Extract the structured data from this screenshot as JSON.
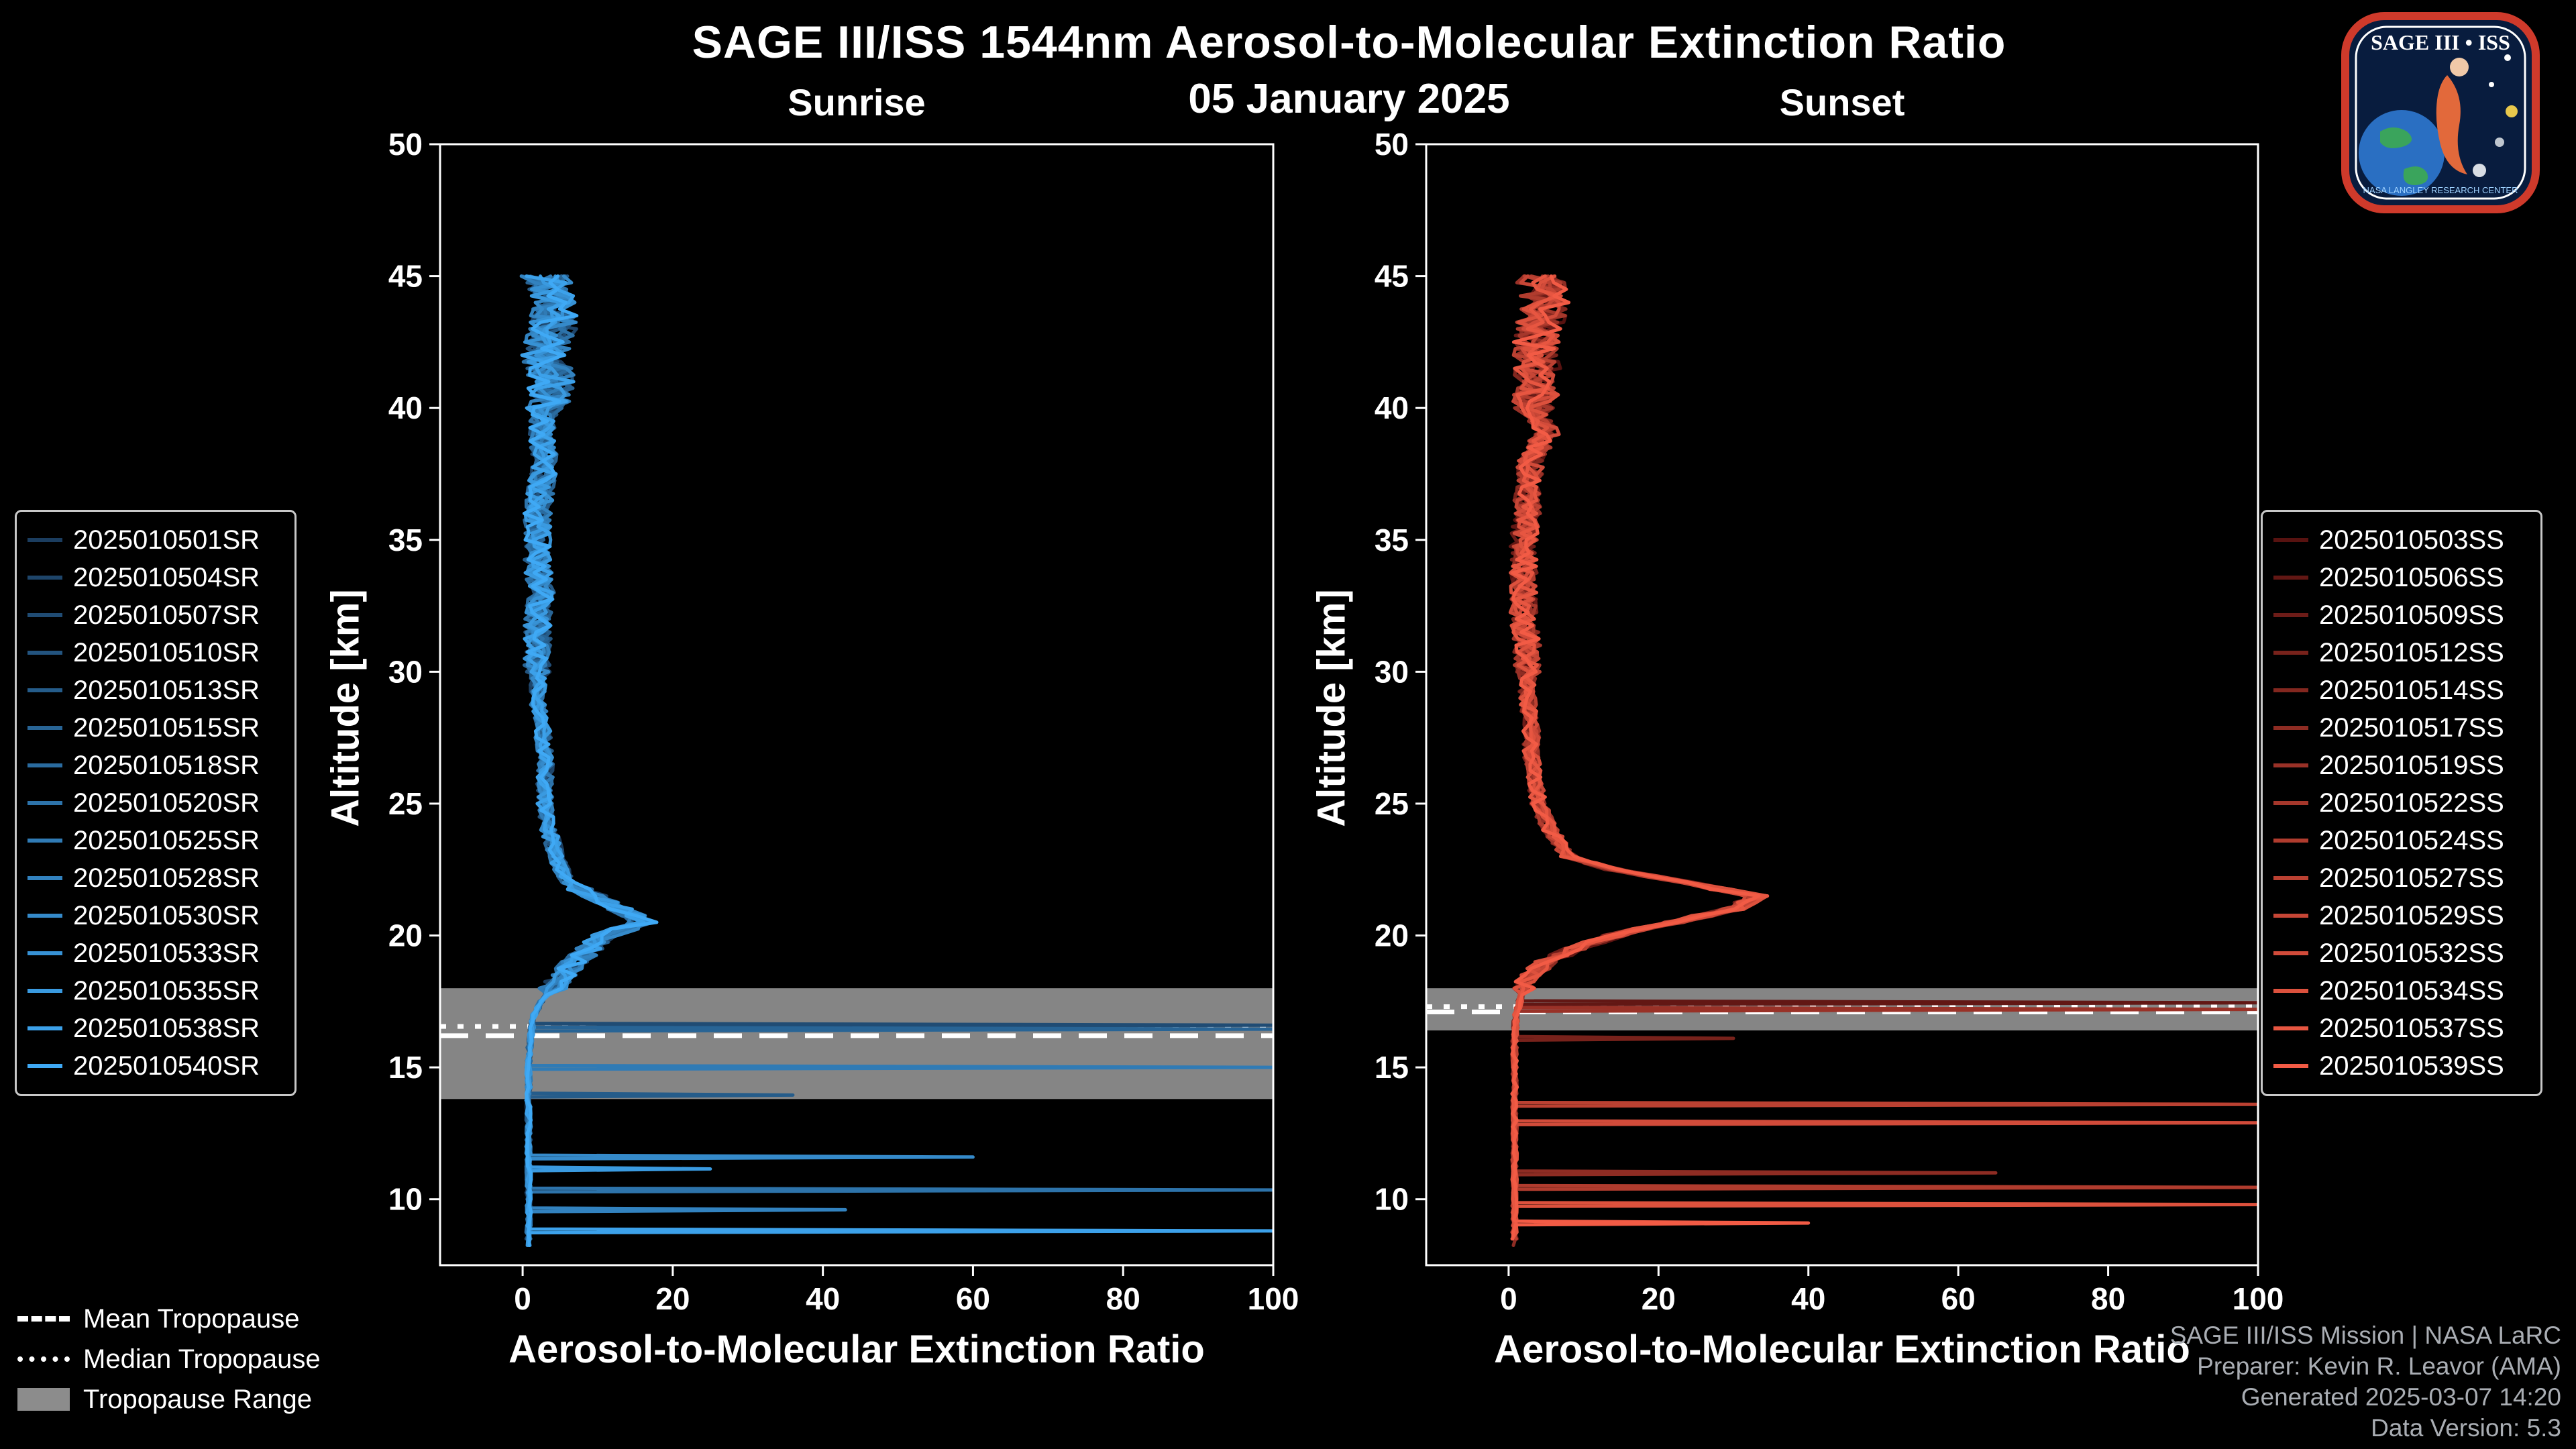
{
  "header": {
    "title": "SAGE III/ISS 1544nm Aerosol-to-Molecular Extinction Ratio",
    "date": "05 January 2025"
  },
  "axes": {
    "ylabel": "Altitude [km]",
    "xlabel": "Aerosol-to-Molecular Extinction Ratio"
  },
  "tropopause_legend": {
    "mean": "Mean Tropopause",
    "median": "Median Tropopause",
    "range": "Tropopause Range"
  },
  "footer": {
    "line1": "SAGE III/ISS Mission | NASA LaRC",
    "line2": "Preparer: Kevin R. Leavor (AMA)",
    "line3": "Generated 2025-03-07 14:20",
    "line4": "Data Version: 5.3"
  },
  "logo": {
    "line1": "SAGE III • ISS",
    "line2": "NASA LANGLEY RESEARCH CENTER"
  },
  "chart_data": [
    {
      "type": "line",
      "title": "Sunrise",
      "xlabel": "Aerosol-to-Molecular Extinction Ratio",
      "ylabel": "Altitude [km]",
      "xlim": [
        -11,
        100
      ],
      "ylim": [
        7.5,
        50
      ],
      "xticks": [
        0,
        20,
        40,
        60,
        80,
        100
      ],
      "yticks": [
        10,
        15,
        20,
        25,
        30,
        35,
        40,
        45,
        50
      ],
      "grid": false,
      "legend_position": "outside-left",
      "series_ids": [
        "2025010501SR",
        "2025010504SR",
        "2025010507SR",
        "2025010510SR",
        "2025010513SR",
        "2025010515SR",
        "2025010518SR",
        "2025010520SR",
        "2025010525SR",
        "2025010528SR",
        "2025010530SR",
        "2025010533SR",
        "2025010535SR",
        "2025010538SR",
        "2025010540SR"
      ],
      "color_start": "#1b3d5f",
      "color_end": "#3fa9f5",
      "base_profile": [
        [
          45,
          3
        ],
        [
          44,
          4.5
        ],
        [
          43,
          4
        ],
        [
          42,
          3
        ],
        [
          41,
          4
        ],
        [
          40,
          3
        ],
        [
          39,
          2.5
        ],
        [
          38,
          3
        ],
        [
          37,
          2.5
        ],
        [
          36,
          2
        ],
        [
          35,
          2
        ],
        [
          34,
          2
        ],
        [
          33,
          2.5
        ],
        [
          32,
          2
        ],
        [
          31,
          2
        ],
        [
          30,
          2
        ],
        [
          29,
          2
        ],
        [
          28,
          2.5
        ],
        [
          27,
          3
        ],
        [
          26,
          3
        ],
        [
          25,
          3
        ],
        [
          24,
          3.5
        ],
        [
          23,
          4.5
        ],
        [
          22,
          6
        ],
        [
          21,
          13
        ],
        [
          20.5,
          16
        ],
        [
          20,
          11
        ],
        [
          19,
          7
        ],
        [
          18,
          4
        ],
        [
          17.5,
          2.5
        ],
        [
          17,
          1.5
        ],
        [
          16,
          1
        ],
        [
          15,
          0.8
        ],
        [
          14,
          0.8
        ],
        [
          13,
          0.8
        ],
        [
          12,
          0.8
        ],
        [
          11,
          0.8
        ],
        [
          10,
          0.8
        ],
        [
          9,
          0.8
        ],
        [
          8,
          0.8
        ]
      ],
      "noise_bands": [
        {
          "min_alt": 40,
          "amp": 3.2
        },
        {
          "min_alt": 30,
          "amp": 1.8
        },
        {
          "min_alt": 22,
          "amp": 1.1
        },
        {
          "min_alt": 18,
          "amp": 1.9
        },
        {
          "min_alt": 0,
          "amp": 0.35
        }
      ],
      "spikes": [
        {
          "series": 2,
          "alt": 16.6,
          "value": 100
        },
        {
          "series": 5,
          "alt": 16.45,
          "value": 100
        },
        {
          "series": 8,
          "alt": 15.0,
          "value": 100
        },
        {
          "series": 4,
          "alt": 13.95,
          "value": 36
        },
        {
          "series": 10,
          "alt": 11.6,
          "value": 60
        },
        {
          "series": 12,
          "alt": 11.15,
          "value": 25
        },
        {
          "series": 7,
          "alt": 10.35,
          "value": 100
        },
        {
          "series": 9,
          "alt": 9.6,
          "value": 43
        },
        {
          "series": 13,
          "alt": 8.8,
          "value": 100
        }
      ],
      "tropopause": {
        "mean": 16.2,
        "median": 16.55,
        "range": [
          13.8,
          18.0
        ]
      }
    },
    {
      "type": "line",
      "title": "Sunset",
      "xlabel": "Aerosol-to-Molecular Extinction Ratio",
      "ylabel": "Altitude [km]",
      "xlim": [
        -11,
        100
      ],
      "ylim": [
        7.5,
        50
      ],
      "xticks": [
        0,
        20,
        40,
        60,
        80,
        100
      ],
      "yticks": [
        10,
        15,
        20,
        25,
        30,
        35,
        40,
        45,
        50
      ],
      "grid": false,
      "legend_position": "outside-right",
      "series_ids": [
        "2025010503SS",
        "2025010506SS",
        "2025010509SS",
        "2025010512SS",
        "2025010514SS",
        "2025010517SS",
        "2025010519SS",
        "2025010522SS",
        "2025010524SS",
        "2025010527SS",
        "2025010529SS",
        "2025010532SS",
        "2025010534SS",
        "2025010537SS",
        "2025010539SS"
      ],
      "color_start": "#571210",
      "color_end": "#f25b45",
      "base_profile": [
        [
          45,
          4
        ],
        [
          44,
          5
        ],
        [
          43,
          4
        ],
        [
          42,
          3.5
        ],
        [
          41,
          4
        ],
        [
          40,
          3.5
        ],
        [
          39,
          5
        ],
        [
          38,
          3
        ],
        [
          37,
          2.5
        ],
        [
          36,
          2.5
        ],
        [
          35,
          2
        ],
        [
          34,
          2
        ],
        [
          33,
          2
        ],
        [
          32,
          2
        ],
        [
          31,
          2.5
        ],
        [
          30,
          2.5
        ],
        [
          29,
          2.5
        ],
        [
          28,
          3
        ],
        [
          27,
          3
        ],
        [
          26,
          3.5
        ],
        [
          25,
          4
        ],
        [
          24,
          5.5
        ],
        [
          23,
          8
        ],
        [
          22.5,
          14
        ],
        [
          22,
          24
        ],
        [
          21.5,
          33
        ],
        [
          21,
          30
        ],
        [
          20.5,
          22
        ],
        [
          20,
          14
        ],
        [
          19.5,
          9
        ],
        [
          19,
          5
        ],
        [
          18.5,
          3
        ],
        [
          18,
          2
        ],
        [
          17,
          1
        ],
        [
          16,
          0.8
        ],
        [
          15,
          0.8
        ],
        [
          14,
          0.8
        ],
        [
          13,
          0.8
        ],
        [
          12,
          0.8
        ],
        [
          11,
          0.8
        ],
        [
          10,
          0.8
        ],
        [
          9,
          0.8
        ],
        [
          8,
          0.8
        ]
      ],
      "noise_bands": [
        {
          "min_alt": 40,
          "amp": 3.2
        },
        {
          "min_alt": 30,
          "amp": 1.8
        },
        {
          "min_alt": 22,
          "amp": 1.1
        },
        {
          "min_alt": 18,
          "amp": 1.6
        },
        {
          "min_alt": 0,
          "amp": 0.35
        }
      ],
      "spikes": [
        {
          "series": 1,
          "alt": 17.45,
          "value": 100
        },
        {
          "series": 6,
          "alt": 17.2,
          "value": 100
        },
        {
          "series": 3,
          "alt": 16.1,
          "value": 30
        },
        {
          "series": 9,
          "alt": 13.6,
          "value": 100
        },
        {
          "series": 11,
          "alt": 12.9,
          "value": 100
        },
        {
          "series": 5,
          "alt": 11.0,
          "value": 65
        },
        {
          "series": 8,
          "alt": 10.45,
          "value": 100
        },
        {
          "series": 12,
          "alt": 9.8,
          "value": 100
        },
        {
          "series": 14,
          "alt": 9.1,
          "value": 40
        }
      ],
      "tropopause": {
        "mean": 17.1,
        "median": 17.3,
        "range": [
          16.4,
          18.0
        ]
      }
    }
  ]
}
